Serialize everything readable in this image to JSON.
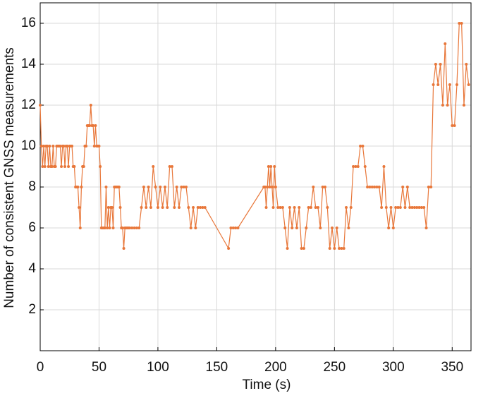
{
  "chart_data": {
    "type": "line",
    "xlabel": "Time (s)",
    "ylabel": "Number of consistent GNSS measurements",
    "x": [
      0,
      1,
      2,
      3,
      4,
      5,
      6,
      7,
      8,
      9,
      10,
      11,
      12,
      13,
      14,
      15,
      16,
      17,
      18,
      19,
      20,
      21,
      22,
      23,
      24,
      25,
      26,
      27,
      28,
      29,
      30,
      31,
      32,
      33,
      34,
      35,
      36,
      37,
      38,
      39,
      40,
      41,
      42,
      43,
      44,
      45,
      46,
      47,
      48,
      49,
      50,
      51,
      52,
      53,
      54,
      55,
      56,
      57,
      58,
      59,
      60,
      61,
      62,
      63,
      64,
      65,
      66,
      67,
      68,
      69,
      70,
      71,
      72,
      73,
      74,
      75,
      76,
      78,
      80,
      82,
      84,
      86,
      88,
      90,
      92,
      94,
      96,
      98,
      100,
      102,
      104,
      106,
      108,
      110,
      112,
      114,
      116,
      118,
      120,
      122,
      124,
      126,
      128,
      130,
      132,
      134,
      136,
      138,
      140,
      160,
      162,
      164,
      166,
      168,
      190,
      191,
      192,
      193,
      194,
      195,
      196,
      197,
      198,
      199,
      200,
      202,
      204,
      206,
      208,
      210,
      212,
      214,
      216,
      218,
      220,
      222,
      224,
      226,
      228,
      230,
      232,
      234,
      236,
      238,
      240,
      242,
      244,
      246,
      248,
      250,
      252,
      254,
      256,
      258,
      260,
      262,
      264,
      266,
      268,
      270,
      272,
      274,
      276,
      278,
      280,
      282,
      284,
      286,
      288,
      290,
      292,
      294,
      296,
      298,
      300,
      302,
      304,
      306,
      308,
      310,
      312,
      314,
      316,
      318,
      320,
      322,
      324,
      326,
      328,
      330,
      332,
      334,
      336,
      338,
      340,
      342,
      344,
      346,
      348,
      350,
      352,
      354,
      356,
      358,
      360,
      362,
      364
    ],
    "values": [
      12,
      10,
      9,
      10,
      9,
      10,
      10,
      9,
      10,
      9,
      9,
      10,
      9,
      9,
      10,
      10,
      10,
      10,
      9,
      10,
      10,
      9,
      10,
      10,
      9,
      10,
      10,
      10,
      9,
      9,
      8,
      8,
      8,
      7,
      6,
      8,
      9,
      9,
      10,
      10,
      11,
      11,
      11,
      12,
      11,
      11,
      10,
      11,
      10,
      10,
      10,
      9,
      6,
      6,
      6,
      6,
      8,
      6,
      7,
      6,
      7,
      7,
      6,
      8,
      8,
      8,
      8,
      8,
      7,
      6,
      6,
      5,
      6,
      6,
      6,
      6,
      6,
      6,
      6,
      6,
      6,
      7,
      8,
      7,
      8,
      7,
      9,
      8,
      7,
      8,
      7,
      8,
      7,
      9,
      9,
      7,
      8,
      7,
      8,
      8,
      8,
      7,
      6,
      7,
      6,
      7,
      7,
      7,
      7,
      5,
      6,
      6,
      6,
      6,
      8,
      8,
      7,
      8,
      9,
      8,
      9,
      8,
      7,
      9,
      8,
      7,
      7,
      7,
      6,
      5,
      7,
      6,
      7,
      6,
      7,
      5,
      5,
      6,
      7,
      7,
      8,
      7,
      7,
      6,
      8,
      8,
      7,
      5,
      6,
      5,
      6,
      5,
      5,
      5,
      7,
      6,
      7,
      9,
      9,
      9,
      10,
      10,
      9,
      8,
      8,
      8,
      8,
      8,
      8,
      7,
      9,
      7,
      6,
      7,
      6,
      7,
      7,
      7,
      8,
      7,
      8,
      7,
      7,
      7,
      7,
      7,
      7,
      7,
      6,
      8,
      8,
      13,
      14,
      13,
      14,
      12,
      15,
      12,
      13,
      11,
      11,
      13,
      16,
      16,
      12,
      14,
      13
    ],
    "color": "#e8773a",
    "xlim": [
      0,
      366
    ],
    "xticks": [
      0,
      50,
      100,
      150,
      200,
      250,
      300,
      350
    ],
    "ylim": [
      0,
      17
    ],
    "yticks": [
      2,
      4,
      6,
      8,
      10,
      12,
      14,
      16
    ],
    "grid": true
  }
}
